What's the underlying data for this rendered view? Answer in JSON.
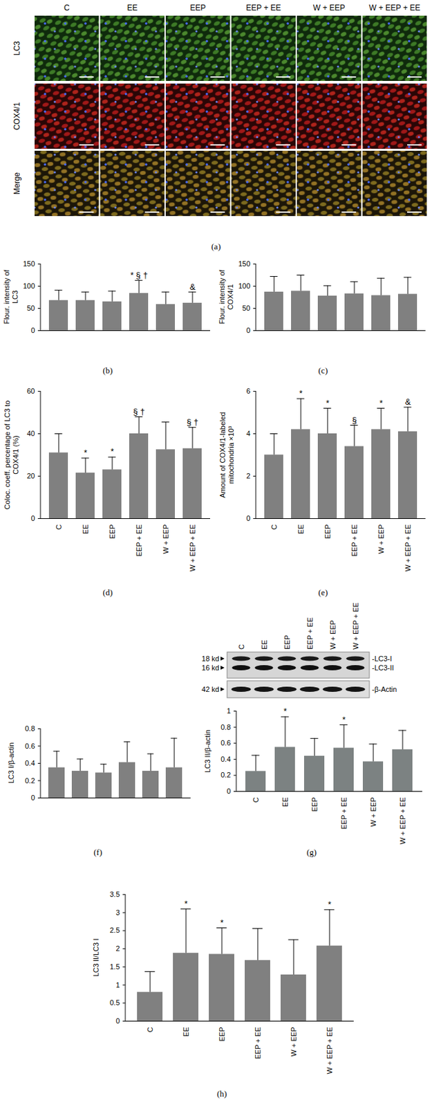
{
  "figure": {
    "panel_a": {
      "columns": [
        "C",
        "EE",
        "EEP",
        "EEP + EE",
        "W + EEP",
        "W + EEP + EE"
      ],
      "rows": [
        "LC3",
        "COX4/1",
        "Merge"
      ],
      "caption": "(a)"
    },
    "blot": {
      "lanes": [
        "C",
        "EE",
        "EEP",
        "EEP + EE",
        "W + EEP",
        "W + EEP + EE"
      ],
      "marker_labels": [
        "18 kd",
        "16 kd",
        "42 kd"
      ],
      "band_labels": [
        "-LC3-I",
        "-LC3-II",
        "-β-Actin"
      ]
    }
  },
  "chart_data": [
    {
      "type": "bar",
      "caption": "(b)",
      "y_label": "Flour. intensity of LC3",
      "categories": [
        null,
        null,
        null,
        null,
        null,
        null
      ],
      "values": [
        68,
        68,
        65,
        84,
        59,
        62
      ],
      "errors": [
        23,
        19,
        24,
        29,
        28,
        25
      ],
      "annotations": [
        null,
        null,
        null,
        "* § †",
        null,
        "&"
      ],
      "color": "#808080",
      "ylim": [
        0,
        150
      ],
      "yticks": [
        0,
        50,
        100,
        150
      ],
      "tick_labels": "y"
    },
    {
      "type": "bar",
      "caption": "(c)",
      "y_label": "Flour. intensity of COX4/1",
      "categories": [
        null,
        null,
        null,
        null,
        null,
        null
      ],
      "values": [
        87,
        89,
        78,
        83,
        79,
        82
      ],
      "errors": [
        35,
        36,
        23,
        27,
        39,
        38
      ],
      "color": "#808080",
      "ylim": [
        0,
        150
      ],
      "yticks": [
        0,
        50,
        100,
        150
      ],
      "tick_labels": "y"
    },
    {
      "type": "bar",
      "caption": "(d)",
      "y_label": "Coloc. coeff. percentage of LC3 to COX4/1 (%)",
      "categories": [
        "C",
        "EE",
        "EEP",
        "EEP + EE",
        "W + EEP",
        "W + EEP + EE"
      ],
      "values": [
        31,
        21.5,
        23,
        40,
        32.5,
        33
      ],
      "errors": [
        9,
        7,
        6,
        8,
        13,
        10
      ],
      "annotations": [
        null,
        "*",
        "*",
        "§ †",
        null,
        "§ †"
      ],
      "color": "#808080",
      "ylim": [
        0,
        60
      ],
      "yticks": [
        0,
        20,
        40,
        60
      ]
    },
    {
      "type": "bar",
      "caption": "(e)",
      "y_label": "Amount of COX4/1-labeled mitochondria ×10³",
      "categories": [
        "C",
        "EE",
        "EEP",
        "EEP + EE",
        "W + EEP",
        "W + EEP + EE"
      ],
      "values": [
        3,
        4.2,
        4,
        3.4,
        4.2,
        4.1
      ],
      "errors": [
        1,
        1.45,
        1.2,
        1,
        1,
        1.15
      ],
      "annotations": [
        null,
        "*",
        "*",
        "§",
        "*",
        "&"
      ],
      "color": "#808080",
      "ylim": [
        0,
        6
      ],
      "yticks": [
        0,
        2,
        4,
        6
      ]
    },
    {
      "type": "bar",
      "caption": "(f)",
      "y_label": "LC3 I/β-actin",
      "categories": [
        null,
        null,
        null,
        null,
        null,
        null
      ],
      "values": [
        0.35,
        0.31,
        0.29,
        0.41,
        0.31,
        0.35
      ],
      "errors": [
        0.19,
        0.14,
        0.1,
        0.24,
        0.2,
        0.34
      ],
      "color": "#808080",
      "ylim": [
        0,
        0.8
      ],
      "yticks": [
        0,
        0.2,
        0.4,
        0.6,
        0.8
      ],
      "tick_labels": "y"
    },
    {
      "type": "bar",
      "caption": "(g)",
      "y_label": "LC3 II/β-actin",
      "categories": [
        "C",
        "EE",
        "EEP",
        "EEP + EE",
        "W + EEP",
        "W + EEP + EE"
      ],
      "values": [
        0.25,
        0.55,
        0.44,
        0.54,
        0.37,
        0.52
      ],
      "errors": [
        0.2,
        0.38,
        0.22,
        0.29,
        0.22,
        0.24
      ],
      "annotations": [
        null,
        "*",
        null,
        "*",
        null,
        null
      ],
      "color": "#7c8282",
      "ylim": [
        0,
        1
      ],
      "yticks": [
        0,
        0.2,
        0.4,
        0.6,
        0.8,
        1
      ]
    },
    {
      "type": "bar",
      "caption": "(h)",
      "y_label": "LC3 II/LC3 I",
      "categories": [
        "C",
        "EE",
        "EEP",
        "EEP + EE",
        "W + EEP",
        "W + EEP + EE"
      ],
      "values": [
        0.8,
        1.88,
        1.85,
        1.68,
        1.28,
        2.08
      ],
      "errors": [
        0.57,
        1.22,
        0.73,
        0.88,
        0.97,
        1.0
      ],
      "annotations": [
        null,
        "*",
        "*",
        null,
        null,
        "*"
      ],
      "color": "#808080",
      "ylim": [
        0,
        3.5
      ],
      "yticks": [
        0,
        0.5,
        1,
        1.5,
        2,
        2.5,
        3,
        3.5
      ]
    }
  ]
}
